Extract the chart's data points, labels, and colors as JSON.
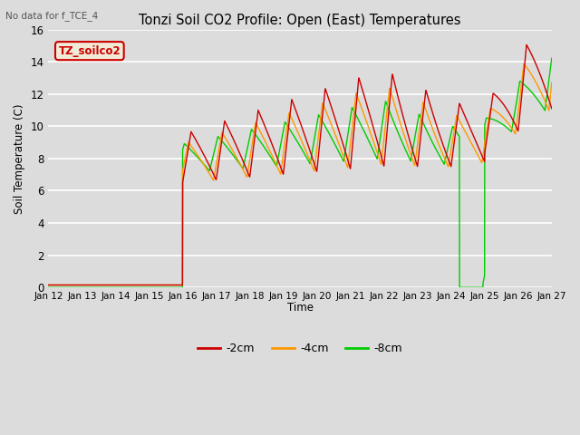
{
  "title": "Tonzi Soil CO2 Profile: Open (East) Temperatures",
  "subtitle": "No data for f_TCE_4",
  "ylabel": "Soil Temperature (C)",
  "xlabel": "Time",
  "legend_label": "TZ_soilco2",
  "series_labels": [
    "-2cm",
    "-4cm",
    "-8cm"
  ],
  "series_colors": [
    "#cc0000",
    "#ff9900",
    "#00cc00"
  ],
  "ylim": [
    0,
    16
  ],
  "x_tick_labels": [
    "Jan 12",
    "Jan 13",
    "Jan 14",
    "Jan 15",
    "Jan 16",
    "Jan 17",
    "Jan 18",
    "Jan 19",
    "Jan 20",
    "Jan 21",
    "Jan 22",
    "Jan 23",
    "Jan 24",
    "Jan 25",
    "Jan 26",
    "Jan 27"
  ],
  "background_color": "#dcdcdc",
  "plot_background": "#dcdcdc",
  "grid_color": "#ffffff",
  "linewidth": 1.0
}
